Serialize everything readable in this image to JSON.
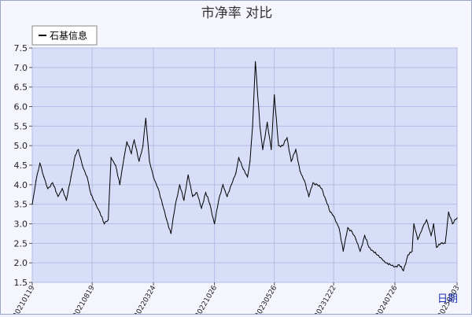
{
  "chart_data": {
    "type": "line",
    "title": "市净率  对比",
    "xlabel": "日期",
    "legend": {
      "placement": "top-left"
    },
    "grid": true,
    "ylim": [
      1.5,
      7.5
    ],
    "yticks": [
      "1.5",
      "2.0",
      "2.5",
      "3.0",
      "3.5",
      "4.0",
      "4.5",
      "5.0",
      "5.5",
      "6.0",
      "6.5",
      "7.0",
      "7.5"
    ],
    "xticks": [
      "20210119",
      "20210819",
      "20220324",
      "20221026",
      "20230526",
      "20231222",
      "20240726",
      "20250303"
    ],
    "series": [
      {
        "name": "石基信息",
        "color": "#000000",
        "points": [
          [
            "20210119",
            3.5
          ],
          [
            "20210201",
            4.1
          ],
          [
            "20210215",
            4.55
          ],
          [
            "20210301",
            4.2
          ],
          [
            "20210315",
            3.9
          ],
          [
            "20210401",
            4.05
          ],
          [
            "20210420",
            3.7
          ],
          [
            "20210505",
            3.9
          ],
          [
            "20210520",
            3.6
          ],
          [
            "20210605",
            4.2
          ],
          [
            "20210620",
            4.75
          ],
          [
            "20210701",
            4.9
          ],
          [
            "20210715",
            4.5
          ],
          [
            "20210801",
            4.2
          ],
          [
            "20210815",
            3.75
          ],
          [
            "20210901",
            3.5
          ],
          [
            "20210915",
            3.3
          ],
          [
            "20211001",
            3.0
          ],
          [
            "20211015",
            3.1
          ],
          [
            "20211025",
            4.7
          ],
          [
            "20211110",
            4.5
          ],
          [
            "20211125",
            4.0
          ],
          [
            "20211210",
            4.7
          ],
          [
            "20211220",
            5.1
          ],
          [
            "20220105",
            4.8
          ],
          [
            "20220115",
            5.15
          ],
          [
            "20220201",
            4.6
          ],
          [
            "20220215",
            5.0
          ],
          [
            "20220225",
            5.7
          ],
          [
            "20220310",
            4.6
          ],
          [
            "20220324",
            4.2
          ],
          [
            "20220410",
            3.9
          ],
          [
            "20220425",
            3.5
          ],
          [
            "20220510",
            3.1
          ],
          [
            "20220525",
            2.75
          ],
          [
            "20220610",
            3.5
          ],
          [
            "20220625",
            4.0
          ],
          [
            "20220710",
            3.6
          ],
          [
            "20220725",
            4.25
          ],
          [
            "20220810",
            3.7
          ],
          [
            "20220825",
            3.8
          ],
          [
            "20220910",
            3.4
          ],
          [
            "20220925",
            3.8
          ],
          [
            "20221010",
            3.5
          ],
          [
            "20221026",
            3.0
          ],
          [
            "20221110",
            3.6
          ],
          [
            "20221125",
            4.0
          ],
          [
            "20221210",
            3.7
          ],
          [
            "20221225",
            4.0
          ],
          [
            "20230110",
            4.3
          ],
          [
            "20230120",
            4.7
          ],
          [
            "20230205",
            4.4
          ],
          [
            "20230220",
            4.2
          ],
          [
            "20230301",
            4.6
          ],
          [
            "20230310",
            5.5
          ],
          [
            "20230320",
            7.15
          ],
          [
            "20230405",
            5.5
          ],
          [
            "20230415",
            4.9
          ],
          [
            "20230501",
            5.6
          ],
          [
            "20230515",
            4.9
          ],
          [
            "20230526",
            6.3
          ],
          [
            "20230610",
            5.0
          ],
          [
            "20230625",
            5.0
          ],
          [
            "20230710",
            5.2
          ],
          [
            "20230725",
            4.6
          ],
          [
            "20230810",
            4.9
          ],
          [
            "20230825",
            4.35
          ],
          [
            "20230910",
            4.1
          ],
          [
            "20230925",
            3.7
          ],
          [
            "20231010",
            4.05
          ],
          [
            "20231025",
            4.0
          ],
          [
            "20231110",
            3.9
          ],
          [
            "20231125",
            3.6
          ],
          [
            "20231210",
            3.3
          ],
          [
            "20231222",
            3.2
          ],
          [
            "20240110",
            2.9
          ],
          [
            "20240125",
            2.3
          ],
          [
            "20240210",
            2.9
          ],
          [
            "20240225",
            2.8
          ],
          [
            "20240310",
            2.6
          ],
          [
            "20240325",
            2.3
          ],
          [
            "20240410",
            2.7
          ],
          [
            "20240425",
            2.4
          ],
          [
            "20240510",
            2.3
          ],
          [
            "20240525",
            2.2
          ],
          [
            "20240610",
            2.1
          ],
          [
            "20240625",
            2.0
          ],
          [
            "20240710",
            1.95
          ],
          [
            "20240726",
            1.9
          ],
          [
            "20240810",
            1.95
          ],
          [
            "20240825",
            1.8
          ],
          [
            "20240910",
            2.2
          ],
          [
            "20240925",
            2.3
          ],
          [
            "20241001",
            3.0
          ],
          [
            "20241015",
            2.6
          ],
          [
            "20241101",
            2.9
          ],
          [
            "20241115",
            3.1
          ],
          [
            "20241201",
            2.7
          ],
          [
            "20241210",
            3.0
          ],
          [
            "20241220",
            2.4
          ],
          [
            "20250105",
            2.5
          ],
          [
            "20250120",
            2.5
          ],
          [
            "20250201",
            3.3
          ],
          [
            "20250215",
            3.0
          ],
          [
            "20250303",
            3.15
          ]
        ]
      }
    ]
  }
}
